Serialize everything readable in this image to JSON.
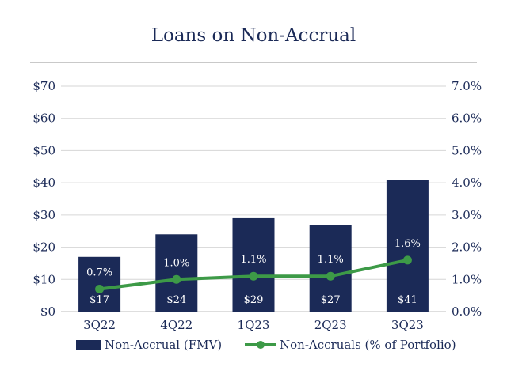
{
  "chart_data": {
    "type": "bar",
    "title": "Loans on Non-Accrual",
    "categories": [
      "3Q22",
      "4Q22",
      "1Q23",
      "2Q23",
      "3Q23"
    ],
    "series": [
      {
        "name": "Non-Accrual (FMV)",
        "type": "bar",
        "axis": "left",
        "values": [
          17,
          24,
          29,
          27,
          41
        ],
        "labels": [
          "$17",
          "$24",
          "$29",
          "$27",
          "$41"
        ],
        "color": "#1b2a57"
      },
      {
        "name": "Non-Accruals (% of Portfolio)",
        "type": "line",
        "axis": "right",
        "values": [
          0.7,
          1.0,
          1.1,
          1.1,
          1.6
        ],
        "labels": [
          "0.7%",
          "1.0%",
          "1.1%",
          "1.1%",
          "1.6%"
        ],
        "color": "#3d9a47"
      }
    ],
    "y_left": {
      "ylim": [
        0,
        70
      ],
      "ticks": [
        "$0",
        "$10",
        "$20",
        "$30",
        "$40",
        "$50",
        "$60",
        "$70"
      ]
    },
    "y_right": {
      "ylim": [
        0,
        7
      ],
      "ticks": [
        "0.0%",
        "1.0%",
        "2.0%",
        "3.0%",
        "4.0%",
        "5.0%",
        "6.0%",
        "7.0%"
      ]
    },
    "grid": true,
    "legend_position": "bottom"
  }
}
